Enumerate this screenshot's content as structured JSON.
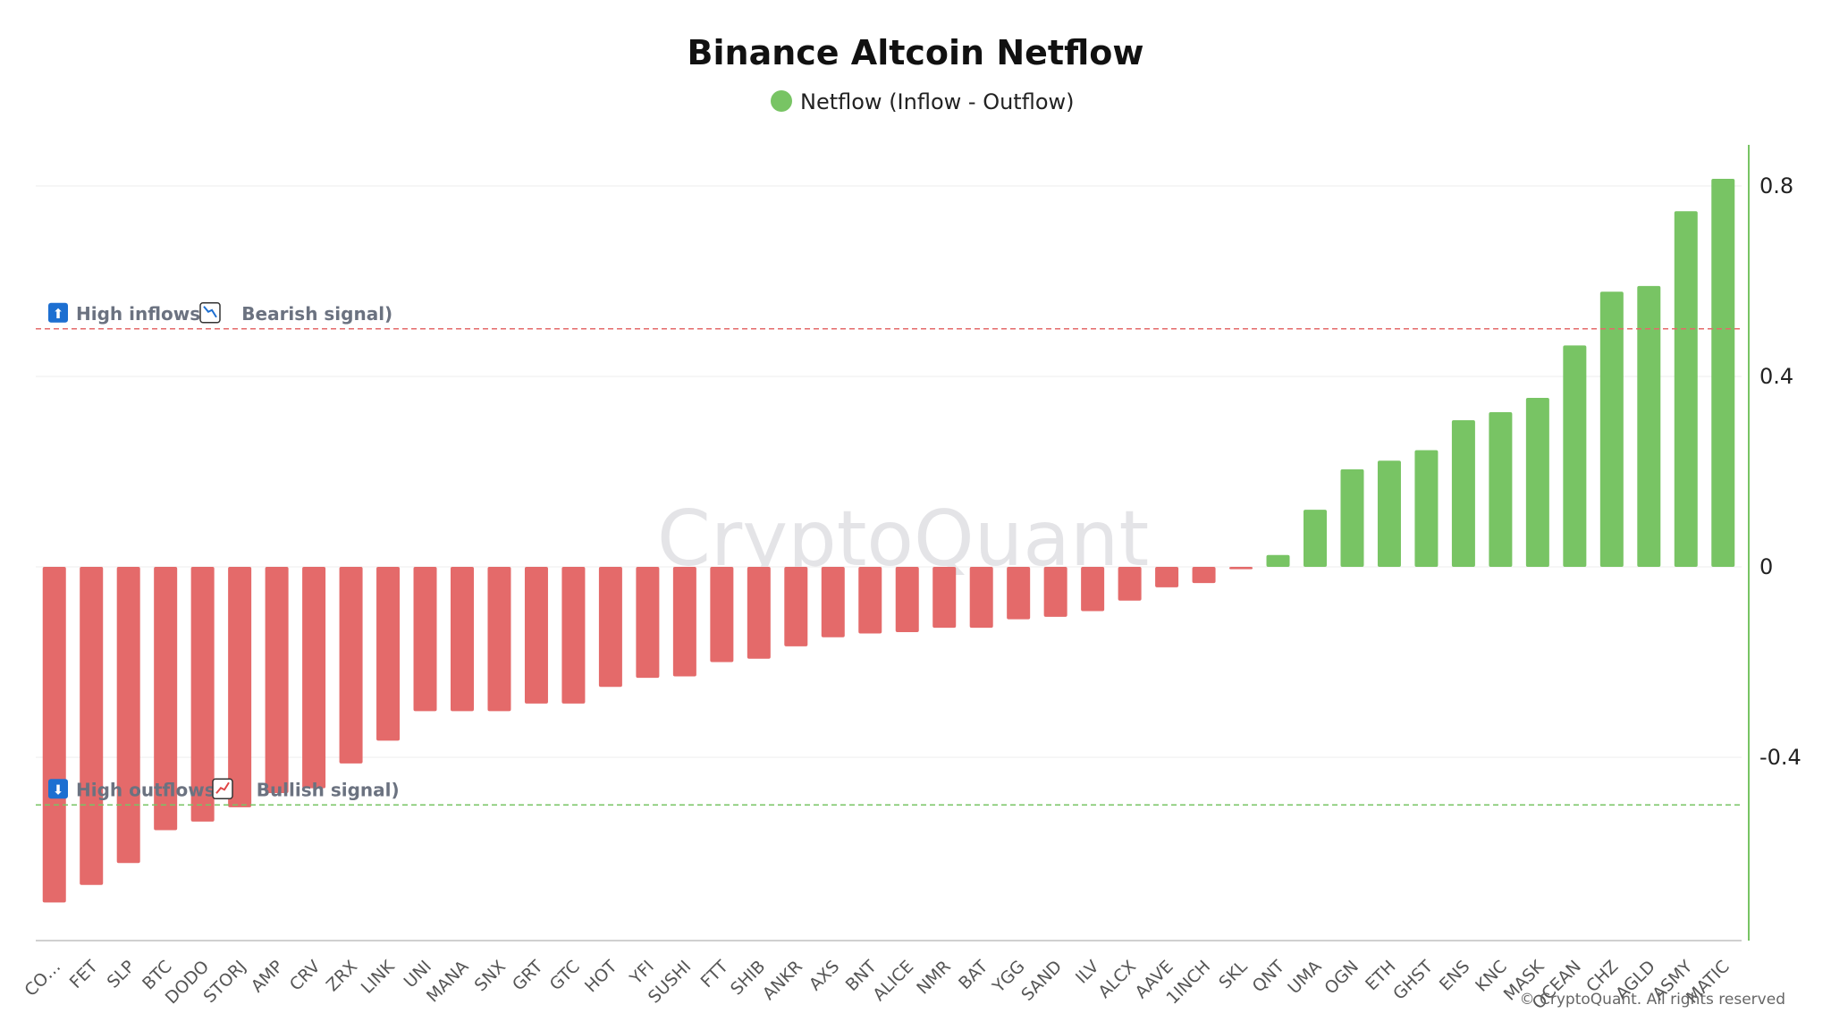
{
  "chart_data": {
    "type": "bar",
    "title": "Binance Altcoin Netflow",
    "legend": {
      "label": "Netflow (Inflow - Outflow)",
      "placement": "top-center"
    },
    "series": [
      {
        "name": "Netflow (Inflow - Outflow)"
      }
    ],
    "categories": [
      "CO…",
      "FET",
      "SLP",
      "BTC",
      "DODO",
      "STORJ",
      "AMP",
      "CRV",
      "ZRX",
      "LINK",
      "UNI",
      "MANA",
      "SNX",
      "GRT",
      "GTC",
      "HOT",
      "YFI",
      "SUSHI",
      "FTT",
      "SHIB",
      "ANKR",
      "AXS",
      "BNT",
      "ALICE",
      "NMR",
      "BAT",
      "YGG",
      "SAND",
      "ILV",
      "ALCX",
      "AAVE",
      "1INCH",
      "SKL",
      "QNT",
      "UMA",
      "OGN",
      "ETH",
      "GHST",
      "ENS",
      "KNC",
      "MASK",
      "OCEAN",
      "CHZ",
      "AGLD",
      "ASMY",
      "MATIC"
    ],
    "values": [
      -0.705,
      -0.668,
      -0.622,
      -0.553,
      -0.535,
      -0.505,
      -0.475,
      -0.465,
      -0.413,
      -0.365,
      -0.303,
      -0.303,
      -0.303,
      -0.287,
      -0.287,
      -0.252,
      -0.233,
      -0.23,
      -0.2,
      -0.193,
      -0.167,
      -0.148,
      -0.14,
      -0.137,
      -0.128,
      -0.128,
      -0.11,
      -0.105,
      -0.093,
      -0.071,
      -0.043,
      -0.034,
      -0.005,
      0.025,
      0.12,
      0.205,
      0.223,
      0.245,
      0.308,
      0.325,
      0.355,
      0.465,
      0.578,
      0.59,
      0.747,
      0.815
    ],
    "colors": {
      "positive": "#78c464",
      "negative": "#e46a6a"
    },
    "yaxis": {
      "position": "right",
      "ticks": [
        "0.8",
        "0.4",
        "0",
        "-0.4"
      ],
      "ylim": [
        -0.78,
        0.9
      ]
    },
    "grid": true,
    "thresholds": [
      {
        "value": 0.5,
        "color": "#e46a6a",
        "style": "dashed",
        "icon": "⬆",
        "icon2": "📉",
        "label_a": "High inflows",
        "label_b": "Bearish signal"
      },
      {
        "value": -0.5,
        "color": "#78c464",
        "style": "dashed",
        "icon": "⬇",
        "icon2": "📈",
        "label_a": "High outflows",
        "label_b": "Bullish signal"
      }
    ]
  },
  "watermark": "CryptoQuant",
  "copyright": "© CryptoQuant. All rights reserved"
}
